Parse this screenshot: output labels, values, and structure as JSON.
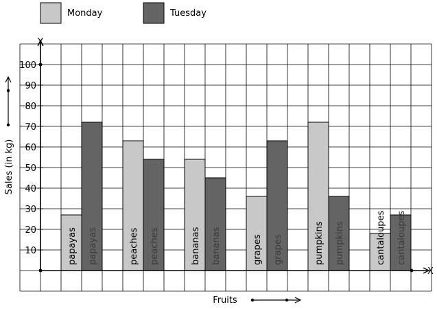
{
  "chart_data": {
    "type": "bar",
    "categories": [
      "papayas",
      "peaches",
      "bananas",
      "grapes",
      "pumpkins",
      "cantaloupes"
    ],
    "series": [
      {
        "name": "Monday",
        "values": [
          27,
          63,
          54,
          36,
          72,
          18
        ],
        "color": "#c8c8c8"
      },
      {
        "name": "Tuesday",
        "values": [
          72,
          54,
          45,
          63,
          36,
          27
        ],
        "color": "#646464"
      }
    ],
    "xlabel": "Fruits",
    "ylabel": "Sales (in kg)",
    "x_axis_letter": "X",
    "y_axis_letter": "Y",
    "ylim": [
      0,
      100
    ],
    "yticks": [
      {
        "value": 10,
        "label": "10"
      },
      {
        "value": 20,
        "label": "20"
      },
      {
        "value": 30,
        "label": "30"
      },
      {
        "value": 40,
        "label": "40"
      },
      {
        "value": 50,
        "label": "50"
      },
      {
        "value": 60,
        "label": "60"
      },
      {
        "value": 70,
        "label": "70"
      },
      {
        "value": 80,
        "label": "80"
      },
      {
        "value": 90,
        "label": "90"
      },
      {
        "value": 100,
        "label": "100"
      }
    ],
    "grid": true,
    "legend_position": "top-left",
    "label_colors": {
      "Monday": "#000000",
      "Tuesday": "#3a3a3a"
    }
  }
}
